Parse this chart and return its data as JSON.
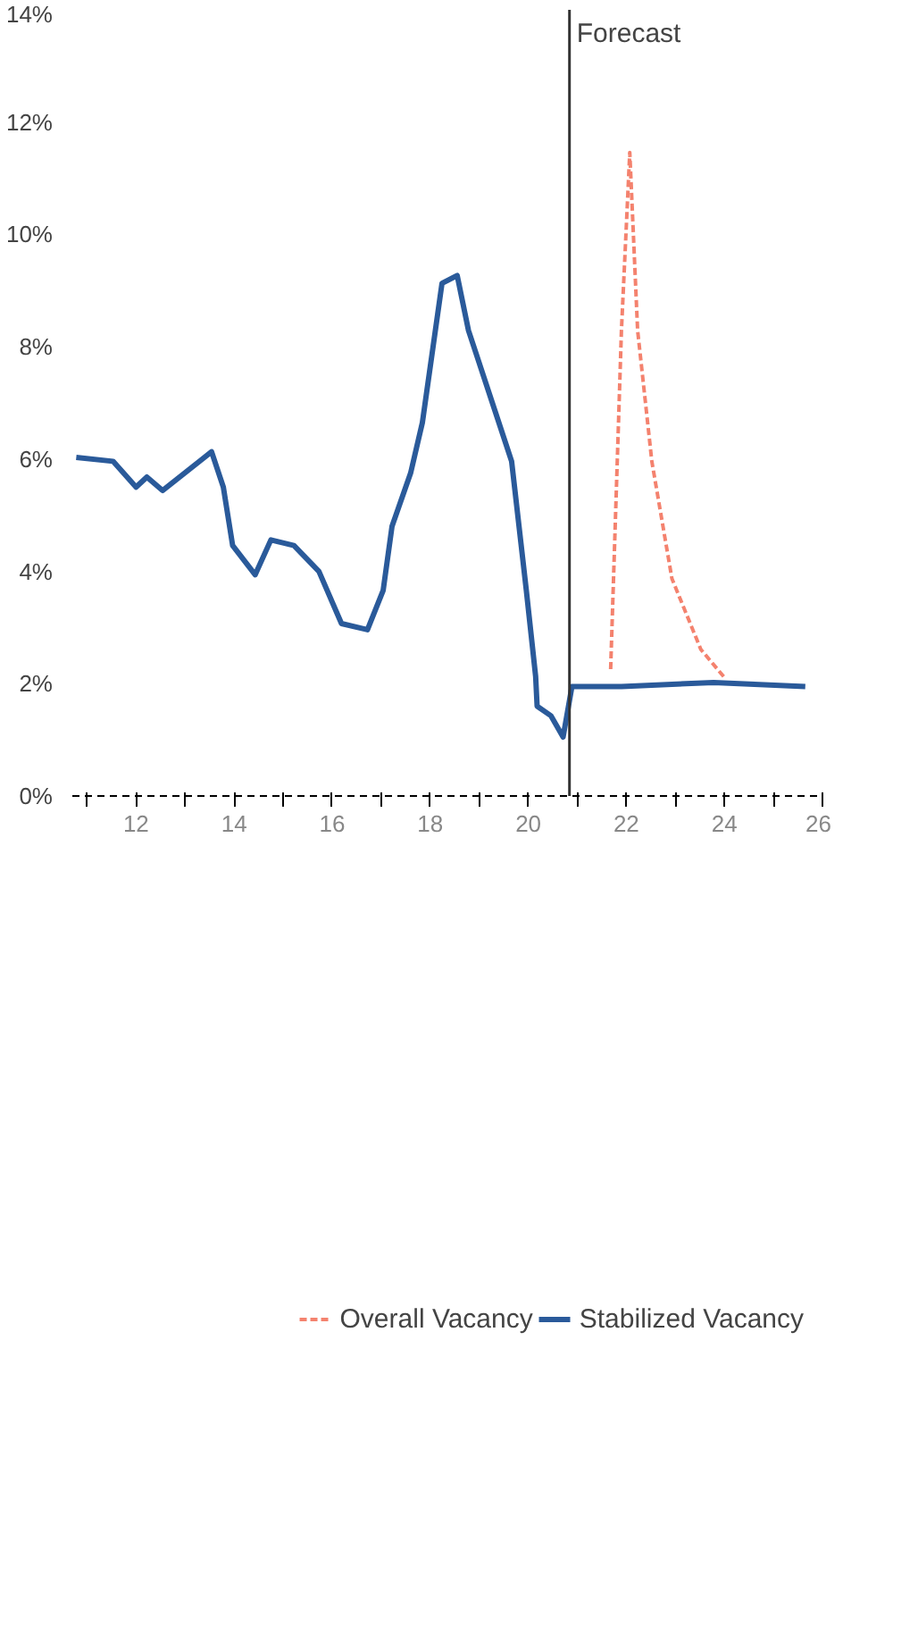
{
  "chart_data": {
    "type": "line",
    "x": [
      10.78,
      11.53,
      12.0,
      12.22,
      12.54,
      13.54,
      13.78,
      13.97,
      14.43,
      14.75,
      15.22,
      15.73,
      16.19,
      16.72,
      17.04,
      17.22,
      17.6,
      17.84,
      18.24,
      18.55,
      18.78,
      19.32,
      19.66,
      19.96,
      20.15,
      20.18,
      20.46,
      20.71,
      20.89,
      21.9,
      23.78,
      25.65
    ],
    "series": [
      {
        "name": "Overall Vacancy",
        "color": "#f4826e",
        "line_style": "dashed",
        "x": [
          21.68,
          21.9,
          22.07,
          22.23,
          22.52,
          22.93,
          23.52,
          24.02
        ],
        "values": [
          2.26,
          8.29,
          11.46,
          8.29,
          5.96,
          3.87,
          2.61,
          2.09
        ]
      },
      {
        "name": "Stabilized Vacancy",
        "color": "#2a5a9a",
        "line_style": "solid",
        "values": [
          6.03,
          5.96,
          5.5,
          5.68,
          5.44,
          6.13,
          5.5,
          4.46,
          3.94,
          4.56,
          4.46,
          4.0,
          3.07,
          2.96,
          3.66,
          4.8,
          5.75,
          6.65,
          9.13,
          9.27,
          8.29,
          6.86,
          5.96,
          3.66,
          2.13,
          1.6,
          1.43,
          1.05,
          1.95,
          1.95,
          2.02,
          1.95
        ]
      }
    ],
    "xlim": [
      10.7,
      26
    ],
    "xticks": [
      {
        "value": 11,
        "label": null
      },
      12,
      {
        "value": 13,
        "label": null
      },
      14,
      {
        "value": 15,
        "label": null
      },
      16,
      {
        "value": 17,
        "label": null
      },
      18,
      {
        "value": 19,
        "label": null
      },
      20,
      {
        "value": 21,
        "label": null
      },
      22,
      {
        "value": 23,
        "label": null
      },
      24,
      {
        "value": 25,
        "label": null
      },
      26
    ],
    "ylim": [
      0,
      14
    ],
    "yticks": [
      {
        "value": 0,
        "label": "0%"
      },
      {
        "value": 2,
        "label": "2%"
      },
      {
        "value": 4,
        "label": "4%"
      },
      {
        "value": 6,
        "label": "6%"
      },
      {
        "value": 8,
        "label": "8%"
      },
      {
        "value": 10,
        "label": "10%"
      },
      {
        "value": 12,
        "label": "12%"
      },
      {
        "value": 14,
        "label": "14%"
      }
    ],
    "ref_lines": [
      {
        "axis": "x",
        "value": 20.84,
        "label": "Forecast",
        "color": "#333333"
      }
    ],
    "grid": false,
    "legend": "bottom"
  }
}
